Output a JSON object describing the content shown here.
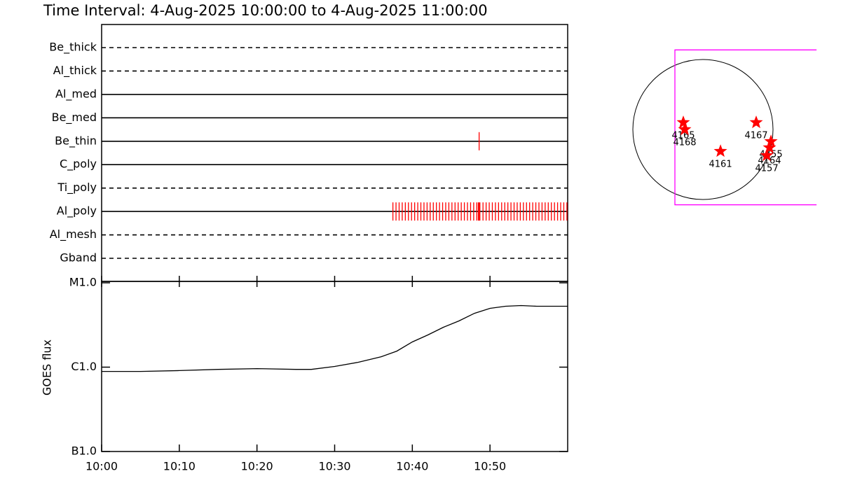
{
  "chart_data": [
    {
      "type": "timeline",
      "title": "Time Interval:  4-Aug-2025 10:00:00 to  4-Aug-2025 11:00:00",
      "categories": [
        "Be_thick",
        "Al_thick",
        "Al_med",
        "Be_med",
        "Be_thin",
        "C_poly",
        "Ti_poly",
        "Al_poly",
        "Al_mesh",
        "Gband"
      ],
      "styles": [
        "dashed",
        "dashed",
        "solid",
        "solid",
        "solid",
        "solid",
        "dashed",
        "solid",
        "dashed",
        "dashed"
      ],
      "color": "#ff0000",
      "observations": [
        [],
        [],
        [],
        [],
        [
          48.6
        ],
        [],
        [],
        [
          37.5,
          37.9,
          38.3,
          38.7,
          39.1,
          39.5,
          39.9,
          40.3,
          40.7,
          41.1,
          41.5,
          41.9,
          42.3,
          42.7,
          43.1,
          43.5,
          43.9,
          44.3,
          44.7,
          45.1,
          45.5,
          45.9,
          46.3,
          46.7,
          47.1,
          47.5,
          47.9,
          48.3,
          48.5,
          48.6,
          48.7,
          49.1,
          49.5,
          49.9,
          50.3,
          50.7,
          51.1,
          51.5,
          51.9,
          52.3,
          52.7,
          53.1,
          53.5,
          53.9,
          54.3,
          54.7,
          55.1,
          55.5,
          55.9,
          56.3,
          56.7,
          57.1,
          57.5,
          57.9,
          58.3,
          58.7,
          59.1,
          59.5,
          59.9
        ],
        [],
        []
      ]
    },
    {
      "type": "line",
      "ylabel": "GOES flux",
      "log": true,
      "color": "#000000",
      "x": [
        0,
        5,
        10,
        15,
        20,
        25,
        27,
        30,
        33,
        36,
        38,
        40,
        42,
        44,
        46,
        48,
        50,
        52,
        54,
        56,
        60
      ],
      "values": [
        8.9e-07,
        8.9e-07,
        9.1e-07,
        9.4e-07,
        9.6e-07,
        9.4e-07,
        9.4e-07,
        1.02e-06,
        1.14e-06,
        1.33e-06,
        1.55e-06,
        1.99e-06,
        2.41e-06,
        2.97e-06,
        3.53e-06,
        4.35e-06,
        4.98e-06,
        5.27e-06,
        5.37e-06,
        5.27e-06,
        5.27e-06
      ],
      "xlim": [
        0,
        60
      ],
      "xticks": [
        {
          "value": 0,
          "label": "10:00"
        },
        {
          "value": 10,
          "label": "10:10"
        },
        {
          "value": 20,
          "label": "10:20"
        },
        {
          "value": 30,
          "label": "10:30"
        },
        {
          "value": 40,
          "label": "10:40"
        },
        {
          "value": 50,
          "label": "10:50"
        }
      ],
      "ylim": [
        1e-07,
        1e-05
      ],
      "yticks": [
        {
          "value": 1e-07,
          "label": "B1.0"
        },
        {
          "value": 1e-06,
          "label": "C1.0"
        },
        {
          "value": 1e-05,
          "label": "M1.0"
        }
      ]
    },
    {
      "type": "map",
      "disk_radius": 950,
      "color": "#ff0000",
      "fov_color": "#ff00ff",
      "fov": {
        "xlim": [
          -380,
          1540
        ],
        "ylim": [
          -1022,
          1080
        ]
      },
      "regions": [
        {
          "label": "4165",
          "x": -266,
          "y": 95
        },
        {
          "label": "4168",
          "x": -247,
          "y": 0
        },
        {
          "label": "4167",
          "x": 722,
          "y": 95
        },
        {
          "label": "4161",
          "x": 238,
          "y": -295
        },
        {
          "label": "4155",
          "x": 922,
          "y": -162
        },
        {
          "label": "4164",
          "x": 902,
          "y": -247
        },
        {
          "label": "4157",
          "x": 865,
          "y": -352
        }
      ]
    }
  ]
}
